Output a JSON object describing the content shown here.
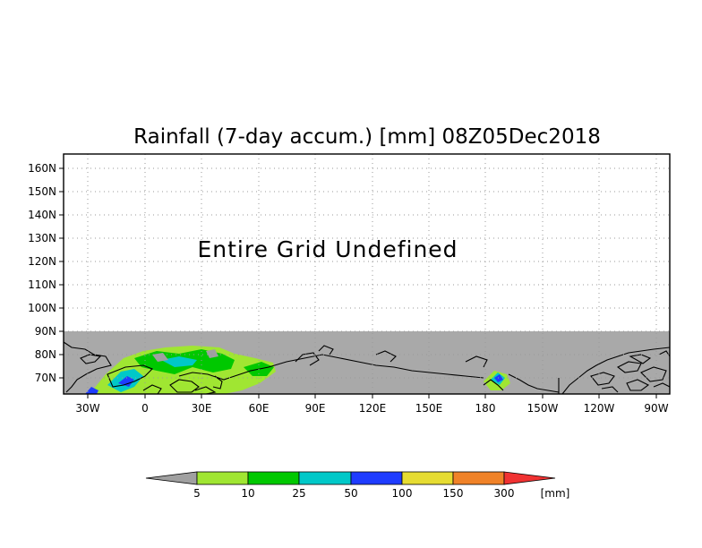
{
  "title": "Rainfall (7-day accum.) [mm] 08Z05Dec2018",
  "message": "Entire Grid Undefined",
  "map": {
    "y_labels": [
      "160N",
      "150N",
      "140N",
      "130N",
      "120N",
      "110N",
      "100N",
      "90N",
      "80N",
      "70N"
    ],
    "x_labels": [
      "30W",
      "0",
      "30E",
      "60E",
      "90E",
      "120E",
      "150E",
      "180",
      "150W",
      "120W",
      "90W"
    ],
    "colors": {
      "undefined_fill": "#a9a9a9",
      "coast": "#000000",
      "grid": "#999999"
    }
  },
  "colorbar": {
    "unit": "[mm]",
    "labels": [
      "5",
      "10",
      "25",
      "50",
      "100",
      "150",
      "300"
    ],
    "colors": [
      "#a0a0a0",
      "#a0e632",
      "#00c800",
      "#00c8c8",
      "#1e3cff",
      "#e6dc32",
      "#f08228",
      "#f03232"
    ]
  }
}
